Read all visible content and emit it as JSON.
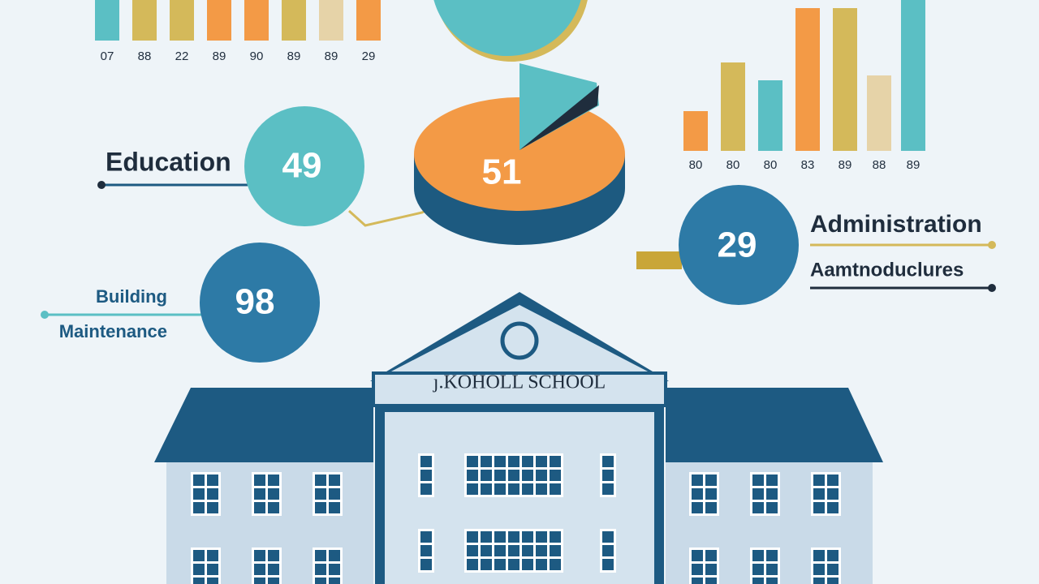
{
  "top_bars": {
    "labels": [
      "07",
      "88",
      "22",
      "89",
      "90",
      "89",
      "89",
      "29"
    ]
  },
  "right_bars": {
    "labels": [
      "80",
      "80",
      "80",
      "83",
      "89",
      "88",
      "89"
    ]
  },
  "education": {
    "label": "Education",
    "value": "49"
  },
  "pie": {
    "value": "51"
  },
  "building_maintenance": {
    "label_line1": "Building",
    "label_line2": "Maintenance",
    "value": "98"
  },
  "administration": {
    "label": "Administration",
    "sublabel": "Aamtnoduclures",
    "value": "29"
  },
  "school": {
    "sign": "ȷ.KOHOLL SCHOOL"
  }
}
